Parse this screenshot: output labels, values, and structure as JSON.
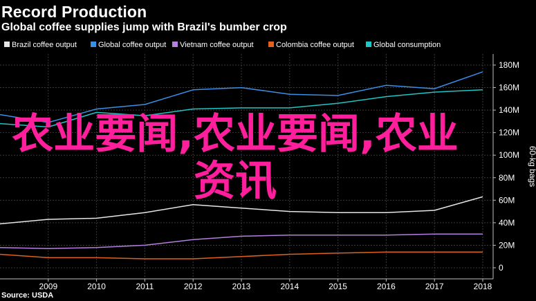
{
  "title": "Record Production",
  "subtitle": "Global coffee supplies jump with Brazil's bumber crop",
  "source": "Source: USDA",
  "overlay": "农业要闻,农业要闻,农业资讯",
  "chart_data": {
    "type": "line",
    "x": [
      "2008",
      "2009",
      "2010",
      "2011",
      "2012",
      "2013",
      "2014",
      "2015",
      "2016",
      "2017",
      "2018"
    ],
    "xticks": [
      "2009",
      "2010",
      "2011",
      "2012",
      "2013",
      "2014",
      "2015",
      "2016",
      "2017",
      "2018"
    ],
    "ylabel": "60-kg bags",
    "ylim": [
      0,
      180
    ],
    "yticks": [
      0,
      20,
      40,
      60,
      80,
      100,
      120,
      140,
      160,
      180
    ],
    "ytick_labels": [
      "0",
      "20M",
      "40M",
      "60M",
      "80M",
      "100M",
      "120M",
      "140M",
      "160M",
      "180M"
    ],
    "legend_position": "top-left",
    "grid": true,
    "series": [
      {
        "name": "Brazil coffee output",
        "color": "#e6e6e6",
        "values": [
          39,
          43,
          44,
          49,
          56,
          53,
          50,
          49,
          49,
          51,
          63
        ]
      },
      {
        "name": "Global coffee output",
        "color": "#3b8fe8",
        "values": [
          136,
          129,
          141,
          145,
          158,
          160,
          154,
          153,
          162,
          159,
          174
        ]
      },
      {
        "name": "Vietnam coffee output",
        "color": "#b77fe0",
        "values": [
          18,
          17,
          18,
          20,
          25,
          28,
          29,
          29,
          29,
          30,
          30
        ]
      },
      {
        "name": "Colombia coffee output",
        "color": "#e0621e",
        "values": [
          12,
          9,
          9,
          8,
          8,
          10,
          12,
          13,
          14,
          14,
          14
        ]
      },
      {
        "name": "Global consumption",
        "color": "#22c5c5",
        "values": [
          128,
          125,
          138,
          135,
          141,
          142,
          142,
          146,
          152,
          156,
          158
        ]
      }
    ]
  }
}
